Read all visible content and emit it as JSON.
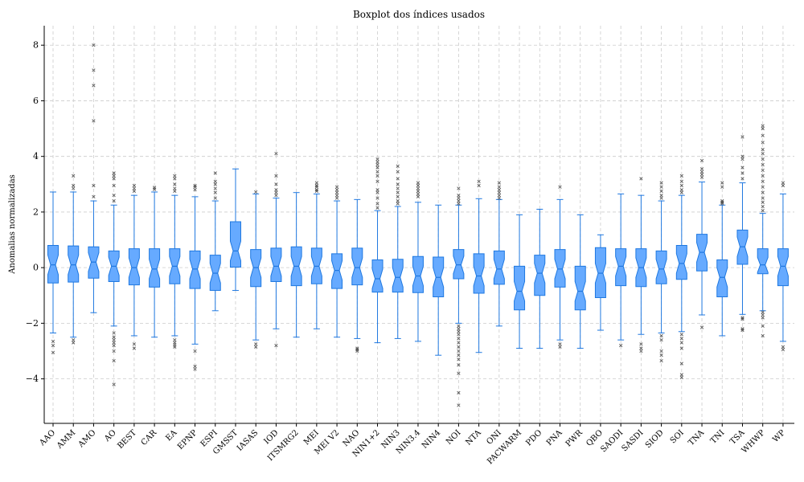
{
  "chart_data": {
    "type": "boxplot",
    "title": "Boxplot dos índices usados",
    "xlabel": "",
    "ylabel": "Anomalias normalizadas",
    "ylim": [
      -5.6,
      8.7
    ],
    "yticks": [
      -4,
      -2,
      0,
      2,
      4,
      6,
      8
    ],
    "grid": true,
    "colors": {
      "box_fill": "#66aaff",
      "box_edge": "#1f78e0",
      "flier": "#333333",
      "grid": "#cccccc"
    },
    "categories": [
      "AAO",
      "AMM",
      "AMO",
      "AO",
      "BEST",
      "CAR",
      "EA",
      "EPNP",
      "ESPI",
      "GMSST",
      "IASAS",
      "IOD",
      "ITSMRG2",
      "MEI",
      "MEI V2",
      "NAO",
      "NIN1+2",
      "NIN3",
      "NIN3.4",
      "NIN4",
      "NOI",
      "NTA",
      "ONI",
      "PACWARM",
      "PDO",
      "PNA",
      "PWR",
      "QBO",
      "SAODI",
      "SASDI",
      "SIOD",
      "SOI",
      "TNA",
      "TNI",
      "TSA",
      "WHWP",
      "WP"
    ],
    "boxes": [
      {
        "q1": -0.55,
        "median": 0.1,
        "q3": 0.8,
        "whislo": -2.35,
        "whishi": 2.72,
        "fliers": [
          -2.65,
          -2.8,
          -3.05
        ]
      },
      {
        "q1": -0.52,
        "median": 0.1,
        "q3": 0.78,
        "whislo": -2.5,
        "whishi": 2.72,
        "fliers": [
          3.3,
          2.95,
          2.85,
          -2.6,
          -2.7
        ]
      },
      {
        "q1": -0.38,
        "median": 0.2,
        "q3": 0.75,
        "whislo": -1.62,
        "whishi": 2.4,
        "fliers": [
          8.0,
          7.1,
          6.55,
          5.28,
          2.95,
          2.55
        ]
      },
      {
        "q1": -0.5,
        "median": 0.05,
        "q3": 0.6,
        "whislo": -2.1,
        "whishi": 2.25,
        "fliers": [
          3.4,
          3.3,
          3.2,
          2.95,
          2.6,
          2.4,
          -2.35,
          -2.5,
          -2.6,
          -2.7,
          -2.8,
          -3.0,
          -3.35,
          -4.2
        ]
      },
      {
        "q1": -0.62,
        "median": 0.0,
        "q3": 0.68,
        "whislo": -2.45,
        "whishi": 2.6,
        "fliers": [
          2.95,
          2.85,
          2.75,
          -2.75,
          -2.9
        ]
      },
      {
        "q1": -0.7,
        "median": -0.05,
        "q3": 0.68,
        "whislo": -2.5,
        "whishi": 2.72,
        "fliers": [
          2.88,
          2.82
        ]
      },
      {
        "q1": -0.58,
        "median": 0.05,
        "q3": 0.68,
        "whislo": -2.45,
        "whishi": 2.6,
        "fliers": [
          3.3,
          3.2,
          3.0,
          2.85,
          2.75,
          -2.6,
          -2.7,
          -2.78,
          -2.85
        ]
      },
      {
        "q1": -0.75,
        "median": -0.05,
        "q3": 0.6,
        "whislo": -2.75,
        "whishi": 2.55,
        "fliers": [
          2.95,
          2.9,
          2.8,
          -3.0,
          -3.55,
          -3.65
        ]
      },
      {
        "q1": -0.82,
        "median": -0.2,
        "q3": 0.45,
        "whislo": -1.55,
        "whishi": 2.4,
        "fliers": [
          3.4,
          3.1,
          3.0,
          2.85,
          2.7,
          2.5
        ]
      },
      {
        "q1": 0.02,
        "median": 0.6,
        "q3": 1.65,
        "whislo": -0.82,
        "whishi": 3.55,
        "fliers": []
      },
      {
        "q1": -0.68,
        "median": 0.0,
        "q3": 0.65,
        "whislo": -2.6,
        "whishi": 2.65,
        "fliers": [
          2.72,
          -2.75,
          -2.85
        ]
      },
      {
        "q1": -0.5,
        "median": 0.05,
        "q3": 0.7,
        "whislo": -2.2,
        "whishi": 2.5,
        "fliers": [
          4.1,
          3.3,
          3.0,
          2.8,
          2.7,
          2.6,
          -2.8
        ]
      },
      {
        "q1": -0.65,
        "median": 0.05,
        "q3": 0.75,
        "whislo": -2.5,
        "whishi": 2.7,
        "fliers": []
      },
      {
        "q1": -0.58,
        "median": 0.05,
        "q3": 0.7,
        "whislo": -2.2,
        "whishi": 2.65,
        "fliers": [
          3.05,
          2.95,
          2.9,
          2.8,
          2.75
        ]
      },
      {
        "q1": -0.75,
        "median": -0.1,
        "q3": 0.5,
        "whislo": -2.5,
        "whishi": 2.4,
        "fliers": [
          2.9,
          2.8,
          2.7,
          2.6,
          2.5
        ]
      },
      {
        "q1": -0.62,
        "median": 0.0,
        "q3": 0.7,
        "whislo": -2.55,
        "whishi": 2.45,
        "fliers": [
          -2.9,
          -2.95,
          -3.0
        ]
      },
      {
        "q1": -0.88,
        "median": -0.4,
        "q3": 0.28,
        "whislo": -2.7,
        "whishi": 2.05,
        "fliers": [
          3.9,
          3.8,
          3.7,
          3.6,
          3.45,
          3.3,
          3.1,
          2.8,
          2.7,
          2.5,
          2.3,
          2.15
        ]
      },
      {
        "q1": -0.88,
        "median": -0.35,
        "q3": 0.3,
        "whislo": -2.55,
        "whishi": 2.2,
        "fliers": [
          3.65,
          3.45,
          3.2,
          3.0,
          2.85,
          2.7,
          2.55,
          2.4,
          2.3
        ]
      },
      {
        "q1": -0.9,
        "median": -0.3,
        "q3": 0.4,
        "whislo": -2.65,
        "whishi": 2.35,
        "fliers": [
          3.05,
          2.95,
          2.85,
          2.75,
          2.65,
          2.55
        ]
      },
      {
        "q1": -1.05,
        "median": -0.35,
        "q3": 0.38,
        "whislo": -3.15,
        "whishi": 2.25,
        "fliers": []
      },
      {
        "q1": -0.4,
        "median": 0.1,
        "q3": 0.65,
        "whislo": -2.0,
        "whishi": 2.25,
        "fliers": [
          2.85,
          2.6,
          2.5,
          2.4,
          2.3,
          -2.1,
          -2.2,
          -2.3,
          -2.4,
          -2.55,
          -2.7,
          -2.85,
          -3.0,
          -3.15,
          -3.3,
          -3.5,
          -3.8,
          -4.5,
          -4.95
        ]
      },
      {
        "q1": -0.92,
        "median": -0.3,
        "q3": 0.5,
        "whislo": -3.05,
        "whishi": 2.48,
        "fliers": [
          3.1,
          2.95
        ]
      },
      {
        "q1": -0.6,
        "median": -0.05,
        "q3": 0.6,
        "whislo": -2.1,
        "whishi": 2.45,
        "fliers": [
          3.05,
          2.9,
          2.8,
          2.7,
          2.6,
          2.5
        ]
      },
      {
        "q1": -1.52,
        "median": -0.85,
        "q3": 0.05,
        "whislo": -2.9,
        "whishi": 1.9,
        "fliers": []
      },
      {
        "q1": -1.0,
        "median": -0.2,
        "q3": 0.45,
        "whislo": -2.9,
        "whishi": 2.1,
        "fliers": []
      },
      {
        "q1": -0.7,
        "median": -0.05,
        "q3": 0.65,
        "whislo": -2.6,
        "whishi": 2.45,
        "fliers": [
          2.9,
          -2.75,
          -2.85
        ]
      },
      {
        "q1": -1.52,
        "median": -0.85,
        "q3": 0.05,
        "whislo": -2.9,
        "whishi": 1.9,
        "fliers": []
      },
      {
        "q1": -1.08,
        "median": -0.2,
        "q3": 0.72,
        "whislo": -2.25,
        "whishi": 1.18,
        "fliers": []
      },
      {
        "q1": -0.65,
        "median": 0.05,
        "q3": 0.68,
        "whislo": -2.6,
        "whishi": 2.65,
        "fliers": [
          -2.8
        ]
      },
      {
        "q1": -0.68,
        "median": 0.0,
        "q3": 0.68,
        "whislo": -2.4,
        "whishi": 2.6,
        "fliers": [
          3.2,
          -2.75,
          -2.9,
          -3.0
        ]
      },
      {
        "q1": -0.58,
        "median": -0.05,
        "q3": 0.6,
        "whislo": -2.35,
        "whishi": 2.4,
        "fliers": [
          3.05,
          2.9,
          2.75,
          2.6,
          2.5,
          -2.45,
          -2.6,
          -3.0,
          -3.15,
          -3.35
        ]
      },
      {
        "q1": -0.42,
        "median": 0.15,
        "q3": 0.8,
        "whislo": -2.3,
        "whishi": 2.6,
        "fliers": [
          3.3,
          3.1,
          2.95,
          2.8,
          2.7,
          -2.4,
          -2.55,
          -2.7,
          -2.9,
          -3.45,
          -3.85,
          -3.95
        ]
      },
      {
        "q1": -0.12,
        "median": 0.55,
        "q3": 1.2,
        "whislo": -1.7,
        "whishi": 3.08,
        "fliers": [
          3.85,
          3.55,
          3.45,
          3.35,
          3.25,
          -2.15
        ]
      },
      {
        "q1": -1.05,
        "median": -0.35,
        "q3": 0.28,
        "whislo": -2.45,
        "whishi": 2.25,
        "fliers": [
          3.05,
          2.9,
          2.4,
          2.35,
          2.3
        ]
      },
      {
        "q1": 0.12,
        "median": 0.75,
        "q3": 1.35,
        "whislo": -1.68,
        "whishi": 3.05,
        "fliers": [
          4.7,
          4.0,
          3.9,
          3.6,
          3.4,
          3.2,
          -1.8,
          -1.85,
          -2.2,
          -2.25
        ]
      },
      {
        "q1": -0.22,
        "median": 0.1,
        "q3": 0.68,
        "whislo": -1.55,
        "whishi": 1.95,
        "fliers": [
          5.1,
          5.0,
          4.75,
          4.5,
          4.25,
          4.1,
          3.9,
          3.7,
          3.5,
          3.3,
          3.1,
          2.9,
          2.7,
          2.5,
          2.35,
          2.2,
          2.05,
          -1.6,
          -1.7,
          -1.8,
          -2.1,
          -2.45
        ]
      },
      {
        "q1": -0.65,
        "median": 0.05,
        "q3": 0.68,
        "whislo": -2.65,
        "whishi": 2.65,
        "fliers": [
          3.05,
          2.95,
          -2.85,
          -2.95
        ]
      }
    ]
  }
}
